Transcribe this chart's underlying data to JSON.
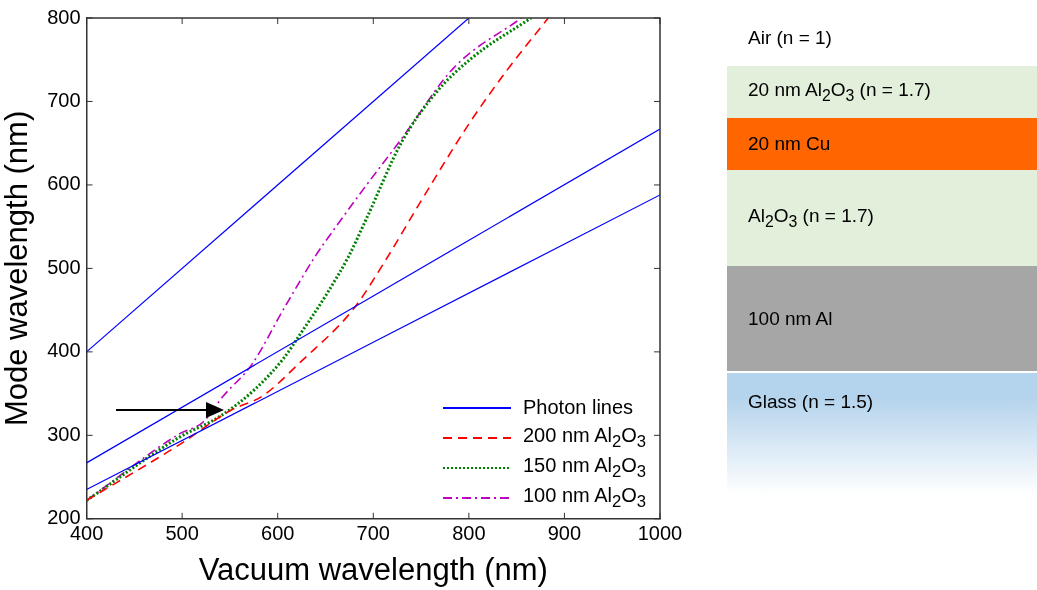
{
  "chart_data": {
    "type": "line",
    "xlabel": "Vacuum wavelength (nm)",
    "ylabel": "Mode wavelength (nm)",
    "xlim": [
      400,
      1000
    ],
    "ylim": [
      200,
      800
    ],
    "xticks": [
      400,
      500,
      600,
      700,
      800,
      900,
      1000
    ],
    "yticks": [
      200,
      300,
      400,
      500,
      600,
      700,
      800
    ],
    "grid": false,
    "legend": "bottom right",
    "marker": "none",
    "series": [
      {
        "name": "Photon lines",
        "color": "#0000ff",
        "line_style": "solid",
        "x": [
          400,
          800
        ],
        "values": [
          400,
          800
        ]
      },
      {
        "color": "#0000ff",
        "line_style": "solid",
        "x": [
          400,
          1000
        ],
        "values": [
          267,
          667
        ]
      },
      {
        "color": "#0000ff",
        "line_style": "solid",
        "x": [
          400,
          1000
        ],
        "values": [
          235,
          588
        ]
      },
      {
        "name": "200 nm Al$_{2}$O$_{3}$",
        "color": "#ff0000",
        "line_style": "dashed",
        "x": [
          400,
          496,
          551,
          584,
          624,
          679,
          713,
          748,
          800,
          839,
          883
        ],
        "values": [
          222,
          288,
          330,
          347,
          388,
          451,
          510,
          577,
          673,
          736,
          800
        ]
      },
      {
        "name": "150 nm Al$_{2}$O$_{3}$",
        "color": "#008000",
        "line_style": "dotted",
        "x": [
          400,
          496,
          540,
          576,
          606,
          624,
          650,
          674,
          693,
          730,
          766,
          803,
          865
        ],
        "values": [
          222,
          297,
          323,
          355,
          392,
          422,
          467,
          514,
          560,
          652,
          711,
          752,
          800
        ]
      },
      {
        "name": "100 nm Al$_{2}$O$_{3}$",
        "color": "#bf00bf",
        "line_style": "dashdot",
        "x": [
          400,
          496,
          522,
          543,
          573,
          606,
          639,
          661,
          693,
          730,
          784,
          855
        ],
        "values": [
          222,
          301,
          316,
          347,
          385,
          451,
          514,
          550,
          600,
          656,
          740,
          800
        ]
      }
    ],
    "annotations": [
      "Air (n = 1)",
      "20 nm Al$_{2}$O$_{3}$ (n = 1.7)",
      "20 nm Cu",
      "Al$_{2}$O$_{3}$ (n = 1.7)",
      "100 nm Al",
      "Glass (n = 1.5)"
    ]
  }
}
